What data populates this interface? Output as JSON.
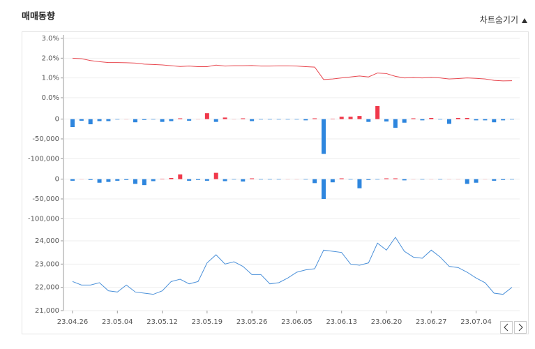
{
  "header": {
    "title": "매매동향",
    "toggle": "차트숨기기"
  },
  "chart_data": [
    {
      "type": "line",
      "color": "#e8474f",
      "ylim": [
        0,
        3
      ],
      "yticks": [
        {
          "value": 0,
          "label": "0.0%"
        },
        {
          "value": 1,
          "label": "1.0%"
        },
        {
          "value": 2,
          "label": "2.0%"
        },
        {
          "value": 3,
          "label": "3.0%"
        }
      ],
      "values": [
        2.0,
        1.97,
        1.88,
        1.82,
        1.78,
        1.78,
        1.77,
        1.75,
        1.7,
        1.68,
        1.66,
        1.62,
        1.58,
        1.6,
        1.57,
        1.57,
        1.65,
        1.6,
        1.62,
        1.62,
        1.63,
        1.6,
        1.6,
        1.61,
        1.61,
        1.6,
        1.57,
        1.55,
        0.92,
        0.95,
        1.0,
        1.05,
        1.1,
        1.05,
        1.25,
        1.22,
        1.08,
        1.0,
        1.02,
        1.0,
        1.03,
        1.0,
        0.95,
        0.97,
        1.0,
        0.98,
        0.95,
        0.88,
        0.85,
        0.86
      ]
    },
    {
      "type": "bar",
      "positive_color": "#f0384a",
      "negative_color": "#2e86de",
      "ylim": [
        -110000,
        40000
      ],
      "yticks": [
        0,
        {
          "value": -50000,
          "label": "-50,000"
        },
        {
          "value": -100000,
          "label": "-100,000"
        }
      ],
      "values": [
        -20000,
        -4000,
        -13000,
        -5000,
        -5000,
        -1000,
        0,
        -8000,
        -2000,
        -1000,
        -7000,
        -5000,
        2000,
        -4000,
        0,
        15000,
        -7000,
        4000,
        0,
        2000,
        -5000,
        -1000,
        -1000,
        -1000,
        -1000,
        -1000,
        -3000,
        2000,
        -88000,
        1000,
        6000,
        6000,
        8000,
        -7000,
        33000,
        -6000,
        -22000,
        -9000,
        2000,
        -3000,
        3000,
        -1000,
        -12000,
        3000,
        3000,
        -3000,
        -3000,
        -8000,
        -3000,
        -1000
      ]
    },
    {
      "type": "bar",
      "positive_color": "#f0384a",
      "negative_color": "#2e86de",
      "ylim": [
        -110000,
        40000
      ],
      "yticks": [
        0,
        {
          "value": -50000,
          "label": "-50,000"
        },
        {
          "value": -100000,
          "label": "-100,000"
        }
      ],
      "values": [
        -4000,
        0,
        -2000,
        -9000,
        -7000,
        -4000,
        -2000,
        -12000,
        -15000,
        -5000,
        1000,
        3000,
        12000,
        -4000,
        -2000,
        -4000,
        16000,
        -5000,
        -1000,
        -6000,
        2000,
        -1000,
        -1000,
        -1000,
        0,
        0,
        -1000,
        -10000,
        -50000,
        -8000,
        2000,
        -1000,
        -23000,
        -2000,
        -1000,
        2000,
        2000,
        -3000,
        0,
        -1000,
        0,
        -1000,
        0,
        0,
        -12000,
        -9000,
        0,
        -4000,
        -2000,
        -1000
      ]
    },
    {
      "type": "line",
      "color": "#4a90d9",
      "ylim": [
        21000,
        24600
      ],
      "yticks": [
        {
          "value": 21000,
          "label": "21,000"
        },
        {
          "value": 22000,
          "label": "22,000"
        },
        {
          "value": 23000,
          "label": "23,000"
        },
        {
          "value": 24000,
          "label": "24,000"
        }
      ],
      "categories": [
        "23.04.26",
        null,
        null,
        null,
        null,
        "23.05.04",
        null,
        null,
        null,
        null,
        "23.05.12",
        null,
        null,
        null,
        null,
        "23.05.19",
        null,
        null,
        null,
        null,
        "23.05.26",
        null,
        null,
        null,
        null,
        "23.06.05",
        null,
        null,
        null,
        null,
        "23.06.13",
        null,
        null,
        null,
        null,
        "23.06.20",
        null,
        null,
        null,
        null,
        "23.06.27",
        null,
        null,
        null,
        null,
        "23.07.04",
        null,
        null,
        null,
        null
      ],
      "values": [
        22250,
        22100,
        22100,
        22200,
        21850,
        21800,
        22100,
        21800,
        21750,
        21700,
        21850,
        22250,
        22350,
        22150,
        22250,
        23050,
        23400,
        23000,
        23100,
        22900,
        22550,
        22550,
        22150,
        22200,
        22400,
        22650,
        22750,
        22800,
        23600,
        23550,
        23500,
        23000,
        22950,
        23050,
        23900,
        23600,
        24150,
        23550,
        23300,
        23250,
        23600,
        23300,
        22900,
        22850,
        22650,
        22400,
        22200,
        21750,
        21700,
        22000
      ]
    }
  ]
}
